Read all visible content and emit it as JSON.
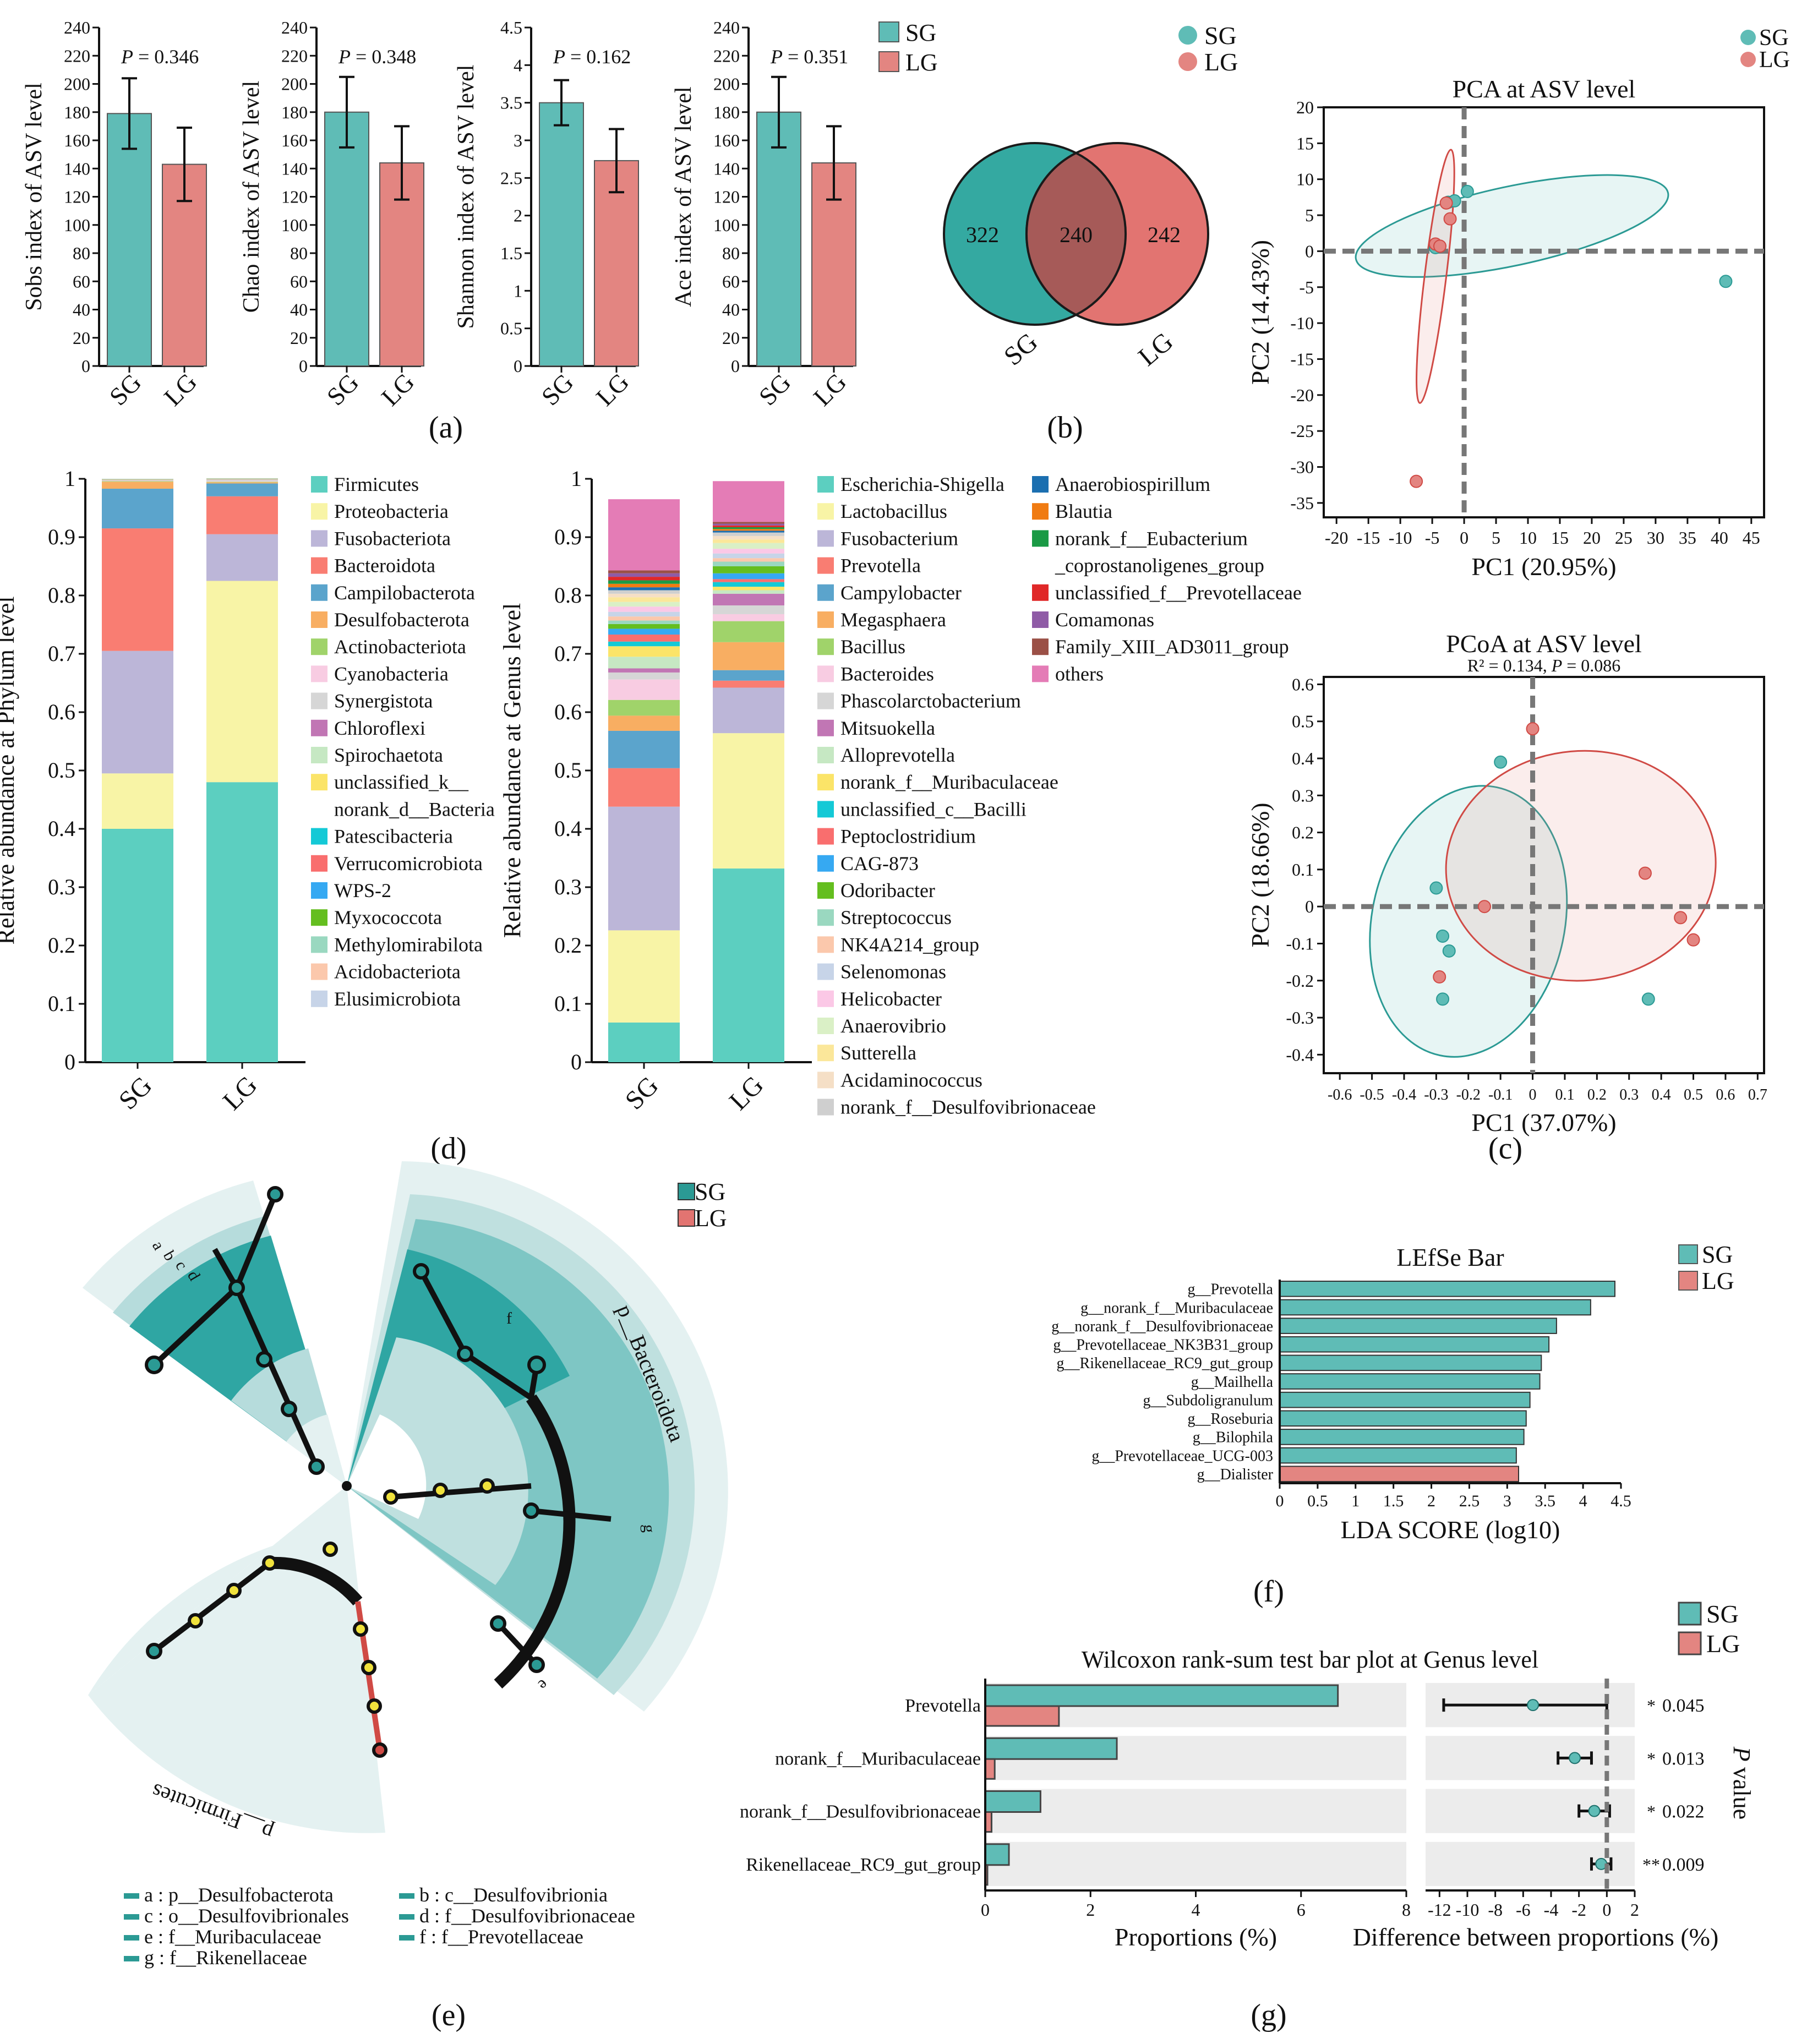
{
  "colors": {
    "sg": "#5fbcb6",
    "lg": "#e38581",
    "sg_dark": "#2b9a94",
    "lg_dark": "#d04a45"
  },
  "panel_labels": {
    "a": "(a)",
    "b": "(b)",
    "c": "(c)",
    "d": "(d)",
    "e": "(e)",
    "f": "(f)",
    "g": "(g)"
  },
  "groups": {
    "sg": "SG",
    "lg": "LG"
  },
  "chart_data": [
    {
      "id": "alpha_sobs",
      "type": "bar",
      "ylabel": "Sobs index of ASV level",
      "ptext": "= 0.346",
      "categories": [
        "SG",
        "LG"
      ],
      "values": [
        179,
        143
      ],
      "errors": [
        25,
        26
      ],
      "ylim": [
        0,
        240
      ],
      "yticks": [
        "0",
        "20",
        "40",
        "60",
        "80",
        "100",
        "120",
        "140",
        "160",
        "180",
        "200",
        "220",
        "240"
      ]
    },
    {
      "id": "alpha_chao",
      "type": "bar",
      "ylabel": "Chao index of ASV level",
      "ptext": "= 0.348",
      "categories": [
        "SG",
        "LG"
      ],
      "values": [
        180,
        144
      ],
      "errors": [
        25,
        26
      ],
      "ylim": [
        0,
        240
      ],
      "yticks": [
        "0",
        "20",
        "40",
        "60",
        "80",
        "100",
        "120",
        "140",
        "160",
        "180",
        "200",
        "220",
        "240"
      ]
    },
    {
      "id": "alpha_shannon",
      "type": "bar",
      "ylabel": "Shannon index of ASV level",
      "ptext": "= 0.162",
      "categories": [
        "SG",
        "LG"
      ],
      "values": [
        3.5,
        2.73
      ],
      "errors": [
        0.3,
        0.42
      ],
      "ylim": [
        0,
        4.5
      ],
      "yticks": [
        "0",
        "0.5",
        "1",
        "1.5",
        "2",
        "2.5",
        "3",
        "3.5",
        "4",
        "4.5"
      ]
    },
    {
      "id": "alpha_ace",
      "type": "bar",
      "ylabel": "Ace index of ASV level",
      "ptext": "= 0.351",
      "categories": [
        "SG",
        "LG"
      ],
      "values": [
        180,
        144
      ],
      "errors": [
        25,
        26
      ],
      "ylim": [
        0,
        240
      ],
      "yticks": [
        "0",
        "20",
        "40",
        "60",
        "80",
        "100",
        "120",
        "140",
        "160",
        "180",
        "200",
        "220",
        "240"
      ]
    },
    {
      "id": "venn",
      "type": "venn",
      "sets": [
        "SG",
        "LG"
      ],
      "only_sg": "322",
      "shared": "240",
      "only_lg": "242"
    },
    {
      "id": "pca",
      "type": "scatter",
      "title": "PCA at ASV level",
      "xlabel": "PC1 (20.95%)",
      "ylabel": "PC2 (14.43%)",
      "xlim": [
        -22,
        47
      ],
      "ylim": [
        -37,
        20
      ],
      "xticks": [
        "-20",
        "-15",
        "-10",
        "-5",
        "0",
        "5",
        "10",
        "15",
        "20",
        "25",
        "30",
        "35",
        "40",
        "45"
      ],
      "yticks": [
        "-35",
        "-30",
        "-25",
        "-20",
        "-15",
        "-10",
        "-5",
        "0",
        "5",
        "10",
        "15",
        "20"
      ],
      "series": [
        {
          "name": "SG",
          "points": [
            [
              -2.5,
              6.8
            ],
            [
              -1.5,
              7.0
            ],
            [
              0.5,
              8.3
            ],
            [
              -4.5,
              0.5
            ],
            [
              41,
              -4.2
            ]
          ]
        },
        {
          "name": "LG",
          "points": [
            [
              -2.8,
              6.7
            ],
            [
              -2.2,
              4.5
            ],
            [
              -4.5,
              1.0
            ],
            [
              -3.8,
              0.7
            ],
            [
              -7.5,
              -32
            ]
          ]
        }
      ],
      "ellipses": [
        {
          "name": "SG",
          "cx": 7.5,
          "cy": 3.5,
          "rx": 25,
          "ry": 5.5,
          "rot": -12
        },
        {
          "name": "LG",
          "cx": -4.5,
          "cy": -3.5,
          "rx": 20,
          "ry": 1.5,
          "rot": -83
        }
      ]
    },
    {
      "id": "pcoa",
      "type": "scatter",
      "title": "PCoA at ASV level",
      "subtitle_r2": "R² = 0.134, ",
      "subtitle_p": "= 0.086",
      "xlabel": "PC1 (37.07%)",
      "ylabel": "PC2 (18.66%)",
      "xlim": [
        -0.65,
        0.72
      ],
      "ylim": [
        -0.45,
        0.62
      ],
      "xticks": [
        "-0.6",
        "-0.5",
        "-0.4",
        "-0.3",
        "-0.2",
        "-0.1",
        "0",
        "0.1",
        "0.2",
        "0.3",
        "0.4",
        "0.5",
        "0.6",
        "0.7"
      ],
      "yticks": [
        "-0.4",
        "-0.3",
        "-0.2",
        "-0.1",
        "0",
        "0.1",
        "0.2",
        "0.3",
        "0.4",
        "0.5",
        "0.6"
      ],
      "series": [
        {
          "name": "SG",
          "points": [
            [
              -0.1,
              0.39
            ],
            [
              -0.3,
              0.05
            ],
            [
              -0.28,
              -0.08
            ],
            [
              -0.26,
              -0.12
            ],
            [
              -0.28,
              -0.25
            ],
            [
              0.36,
              -0.25
            ]
          ]
        },
        {
          "name": "LG",
          "points": [
            [
              0.0,
              0.48
            ],
            [
              0.35,
              0.09
            ],
            [
              0.46,
              -0.03
            ],
            [
              0.5,
              -0.09
            ],
            [
              -0.15,
              0.0
            ],
            [
              -0.29,
              -0.19
            ]
          ]
        }
      ],
      "ellipses": [
        {
          "name": "SG",
          "cx": -0.2,
          "cy": -0.04,
          "rx": 0.3,
          "ry": 0.37,
          "rot": 12
        },
        {
          "name": "LG",
          "cx": 0.15,
          "cy": 0.11,
          "rx": 0.42,
          "ry": 0.31,
          "rot": -5
        }
      ]
    },
    {
      "id": "phylum",
      "type": "bar",
      "stacked": true,
      "ylabel": "Relative abundance at Phylum level",
      "categories": [
        "SG",
        "LG"
      ],
      "ylim": [
        0,
        1
      ],
      "yticks": [
        "0",
        "0.1",
        "0.2",
        "0.3",
        "0.4",
        "0.5",
        "0.6",
        "0.7",
        "0.8",
        "0.9",
        "1"
      ],
      "series": [
        {
          "name": "Firmicutes",
          "color": "#5ccfc0",
          "values": [
            0.4,
            0.48
          ]
        },
        {
          "name": "Proteobacteria",
          "color": "#f8f4a6",
          "values": [
            0.095,
            0.345
          ]
        },
        {
          "name": "Fusobacteriota",
          "color": "#bcb6d8",
          "values": [
            0.21,
            0.08
          ]
        },
        {
          "name": "Bacteroidota",
          "color": "#f97d72",
          "values": [
            0.21,
            0.065
          ]
        },
        {
          "name": "Campilobacterota",
          "color": "#5ba4cc",
          "values": [
            0.068,
            0.022
          ]
        },
        {
          "name": "Desulfobacterota",
          "color": "#f8ae62",
          "values": [
            0.012,
            0.002
          ]
        },
        {
          "name": "Actinobacteriota",
          "color": "#a0d36a",
          "values": [
            0.001,
            0.001
          ]
        },
        {
          "name": "Cyanobacteria",
          "color": "#f8cce2",
          "values": [
            0.0005,
            0.001
          ]
        },
        {
          "name": "Synergistota",
          "color": "#d6d6d6",
          "values": [
            0.0005,
            0.002
          ]
        },
        {
          "name": "Chloroflexi",
          "color": "#c176b4",
          "values": [
            0.0005,
            0.0005
          ]
        },
        {
          "name": "Spirochaetota",
          "color": "#c6e8c3",
          "values": [
            0.0005,
            0.0005
          ]
        },
        {
          "name": "unclassified_k__",
          "name2": "norank_d__Bacteria",
          "color": "#fbe468",
          "values": [
            0.0005,
            0.0005
          ]
        },
        {
          "name": "Patescibacteria",
          "color": "#14c9d6",
          "values": [
            0.0003,
            0.0003
          ]
        },
        {
          "name": "Verrucomicrobiota",
          "color": "#f96e6e",
          "values": [
            0.0003,
            0.0003
          ]
        },
        {
          "name": "WPS-2",
          "color": "#36a9f2",
          "values": [
            0.0002,
            0.0002
          ]
        },
        {
          "name": "Myxococcota",
          "color": "#64be1f",
          "values": [
            0.0002,
            0.0002
          ]
        },
        {
          "name": "Methylomirabilota",
          "color": "#9ad8c0",
          "values": [
            0.0002,
            0.0002
          ]
        },
        {
          "name": "Acidobacteriota",
          "color": "#fbc8ac",
          "values": [
            0.0002,
            0.0002
          ]
        },
        {
          "name": "Elusimicrobiota",
          "color": "#c7d4e8",
          "values": [
            0.0002,
            0.0002
          ]
        }
      ]
    },
    {
      "id": "genus",
      "type": "bar",
      "stacked": true,
      "ylabel": "Relative abundance at Genus level",
      "categories": [
        "SG",
        "LG"
      ],
      "ylim": [
        0,
        1
      ],
      "yticks": [
        "0",
        "0.1",
        "0.2",
        "0.3",
        "0.4",
        "0.5",
        "0.6",
        "0.7",
        "0.8",
        "0.9",
        "1"
      ],
      "series": [
        {
          "name": "Escherichia-Shigella",
          "color": "#5ccfc0",
          "values": [
            0.068,
            0.332
          ]
        },
        {
          "name": "Lactobacillus",
          "color": "#f8f4a6",
          "values": [
            0.158,
            0.232
          ]
        },
        {
          "name": "Fusobacterium",
          "color": "#bcb6d8",
          "values": [
            0.212,
            0.078
          ]
        },
        {
          "name": "Prevotella",
          "color": "#f97d72",
          "values": [
            0.066,
            0.012
          ]
        },
        {
          "name": "Campylobacter",
          "color": "#5ba4cc",
          "values": [
            0.064,
            0.018
          ]
        },
        {
          "name": "Megasphaera",
          "color": "#f8ae62",
          "values": [
            0.026,
            0.048
          ]
        },
        {
          "name": "Bacillus",
          "color": "#a0d36a",
          "values": [
            0.027,
            0.036
          ]
        },
        {
          "name": "Bacteroides",
          "color": "#f8cce2",
          "values": [
            0.035,
            0.012
          ]
        },
        {
          "name": "Phascolarctobacterium",
          "color": "#d6d6d6",
          "values": [
            0.012,
            0.015
          ]
        },
        {
          "name": "Mitsuokella",
          "color": "#c176b4",
          "values": [
            0.007,
            0.02
          ]
        },
        {
          "name": "Alloprevotella",
          "color": "#c6e8c3",
          "values": [
            0.02,
            0.006
          ]
        },
        {
          "name": "norank_f__Muribaculaceae",
          "color": "#fbe468",
          "values": [
            0.018,
            0.006
          ]
        },
        {
          "name": "unclassified_c__Bacilli",
          "color": "#14c9d6",
          "values": [
            0.008,
            0.008
          ]
        },
        {
          "name": "Peptoclostridium",
          "color": "#f96e6e",
          "values": [
            0.012,
            0.005
          ]
        },
        {
          "name": "CAG-873",
          "color": "#36a9f2",
          "values": [
            0.01,
            0.01
          ]
        },
        {
          "name": "Odoribacter",
          "color": "#64be1f",
          "values": [
            0.008,
            0.012
          ]
        },
        {
          "name": "Streptococcus",
          "color": "#9ad8c0",
          "values": [
            0.006,
            0.008
          ]
        },
        {
          "name": "NK4A214_group",
          "color": "#fbc8ac",
          "values": [
            0.007,
            0.006
          ]
        },
        {
          "name": "Selenomonas",
          "color": "#c7d4e8",
          "values": [
            0.008,
            0.008
          ]
        },
        {
          "name": "Helicobacter",
          "color": "#fbc8e6",
          "values": [
            0.009,
            0.008
          ]
        },
        {
          "name": "Anaerovibrio",
          "color": "#daf0c6",
          "values": [
            0.008,
            0.01
          ]
        },
        {
          "name": "Sutterella",
          "color": "#fbe79a",
          "values": [
            0.008,
            0.006
          ]
        },
        {
          "name": "Acidaminococcus",
          "color": "#f5dfc6",
          "values": [
            0.006,
            0.006
          ]
        },
        {
          "name": "norank_f__Desulfovibrionaceae",
          "color": "#cfcfcf",
          "values": [
            0.006,
            0.006
          ]
        },
        {
          "name": "Anaerobiospirillum",
          "color": "#1b6fb0",
          "values": [
            0.005,
            0.003
          ]
        },
        {
          "name": "Blautia",
          "color": "#f07b12",
          "values": [
            0.006,
            0.003
          ]
        },
        {
          "name": "norank_f__Eubacterium",
          "name2": "_coprostanoligenes_group",
          "color": "#1a9a45",
          "values": [
            0.006,
            0.003
          ]
        },
        {
          "name": "unclassified_f__Prevotellaceae",
          "color": "#e02828",
          "values": [
            0.006,
            0.003
          ]
        },
        {
          "name": "Comamonas",
          "color": "#8f5ba6",
          "values": [
            0.006,
            0.003
          ]
        },
        {
          "name": "Family_XIII_AD3011_group",
          "color": "#9b5046",
          "values": [
            0.005,
            0.003
          ]
        },
        {
          "name": "others",
          "color": "#e47cb6",
          "values": [
            0.122,
            0.07
          ]
        }
      ]
    },
    {
      "id": "lefse",
      "type": "bar",
      "orientation": "horizontal",
      "title": "LEfSe Bar",
      "xlabel": "LDA SCORE (log10)",
      "xlim": [
        0,
        4.5
      ],
      "xticks": [
        "0",
        "0.5",
        "1",
        "1.5",
        "2",
        "2.5",
        "3",
        "3.5",
        "4",
        "4.5"
      ],
      "categories": [
        "g__Prevotella",
        "g__norank_f__Muribaculaceae",
        "g__norank_f__Desulfovibrionaceae",
        "g__Prevotellaceae_NK3B31_group",
        "g__Rikenellaceae_RC9_gut_group",
        "g__Mailhella",
        "g__Subdoligranulum",
        "g__Roseburia",
        "g__Bilophila",
        "g__Prevotellaceae_UCG-003",
        "g__Dialister"
      ],
      "values": [
        4.42,
        4.1,
        3.65,
        3.55,
        3.45,
        3.43,
        3.3,
        3.25,
        3.22,
        3.12,
        3.15
      ],
      "groups": [
        "SG",
        "SG",
        "SG",
        "SG",
        "SG",
        "SG",
        "SG",
        "SG",
        "SG",
        "SG",
        "LG"
      ]
    },
    {
      "id": "wilcoxon",
      "type": "bar",
      "orientation": "horizontal",
      "title": "Wilcoxon rank-sum test bar plot at Genus level",
      "xlabel": "Proportions (%)",
      "xlabel2": "Difference between proportions (%)",
      "ylabel2": "value",
      "categories": [
        "Prevotella",
        "norank_f__Muribaculaceae",
        "norank_f__Desulfovibrionaceae",
        "Rikenellaceae_RC9_gut_group"
      ],
      "sg": [
        6.7,
        2.5,
        1.05,
        0.45
      ],
      "lg": [
        1.4,
        0.18,
        0.12,
        0.02
      ],
      "xlim": [
        0,
        8
      ],
      "xticks": [
        "0",
        "2",
        "4",
        "6",
        "8"
      ],
      "diff": [
        -5.3,
        -2.3,
        -0.9,
        -0.4
      ],
      "ci_low": [
        -11.7,
        -3.5,
        -2.0,
        -1.1
      ],
      "ci_high": [
        0,
        -1.1,
        0.2,
        0.3
      ],
      "dxlim": [
        -13,
        2
      ],
      "dxticks": [
        "-12",
        "-10",
        "-8",
        "-6",
        "-4",
        "-2",
        "0",
        "2"
      ],
      "stars": [
        "*",
        "*",
        "*",
        "**"
      ],
      "pvalues": [
        "0.045",
        "0.013",
        "0.022",
        "0.009"
      ]
    }
  ],
  "cladogram": {
    "phyla": [
      "p__Bacteroidota",
      "p__Firmicutes"
    ],
    "node_labels": [
      "a",
      "b",
      "c",
      "d",
      "f",
      "g",
      "e"
    ],
    "legend": [
      "a : p__Desulfobacterota",
      "b : c__Desulfovibrionia",
      "c : o__Desulfovibrionales",
      "d : f__Desulfovibrionaceae",
      "e : f__Muribaculaceae",
      "f : f__Prevotellaceae",
      "g : f__Rikenellaceae"
    ]
  }
}
